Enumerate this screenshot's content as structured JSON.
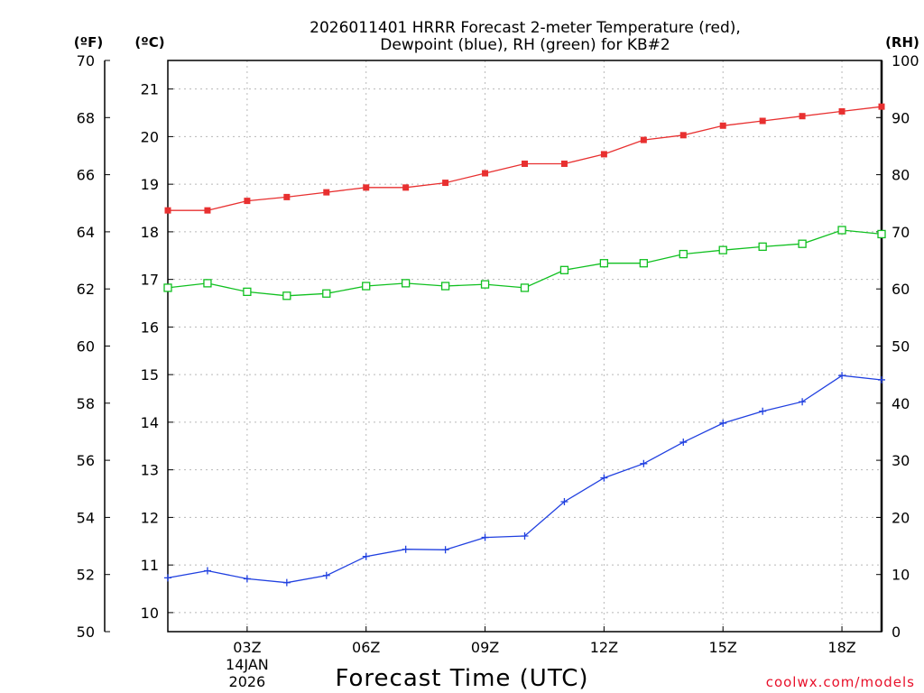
{
  "chart_data": {
    "type": "line",
    "title_line1": "2026011401 HRRR Forecast 2-meter Temperature (red),",
    "title_line2": "Dewpoint (blue), RH (green) for KB#2",
    "xlabel": "Forecast Time (UTC)",
    "credit": "coolwx.com/models",
    "axes": {
      "fahrenheit": {
        "unit": "(ºF)",
        "ticks": [
          "50",
          "52",
          "54",
          "56",
          "58",
          "60",
          "62",
          "64",
          "66",
          "68",
          "70"
        ],
        "range": [
          50,
          70
        ]
      },
      "celsius": {
        "unit": "(ºC)",
        "ticks": [
          "10",
          "11",
          "12",
          "13",
          "14",
          "15",
          "16",
          "17",
          "18",
          "19",
          "20",
          "21"
        ],
        "range": [
          9.6,
          21.6
        ]
      },
      "rh": {
        "unit": "(RH)",
        "ticks": [
          "0",
          "10",
          "20",
          "30",
          "40",
          "50",
          "60",
          "70",
          "80",
          "90",
          "100"
        ],
        "range": [
          0,
          100
        ]
      }
    },
    "x": [
      1,
      2,
      3,
      4,
      5,
      6,
      7,
      8,
      9,
      10,
      11,
      12,
      13,
      14,
      15,
      16,
      17,
      18,
      19
    ],
    "xlim": [
      1,
      19
    ],
    "x_ticks": [
      {
        "x": 3,
        "label": "03Z",
        "sub1": "14JAN",
        "sub2": "2026"
      },
      {
        "x": 6,
        "label": "06Z",
        "sub1": "",
        "sub2": ""
      },
      {
        "x": 9,
        "label": "09Z",
        "sub1": "",
        "sub2": ""
      },
      {
        "x": 12,
        "label": "12Z",
        "sub1": "",
        "sub2": ""
      },
      {
        "x": 15,
        "label": "15Z",
        "sub1": "",
        "sub2": ""
      },
      {
        "x": 18,
        "label": "18Z",
        "sub1": "",
        "sub2": ""
      }
    ],
    "series": [
      {
        "name": "Temperature",
        "axis": "celsius",
        "color": "#e83030",
        "marker": "filled-square",
        "values": [
          18.45,
          18.45,
          18.65,
          18.73,
          18.83,
          18.93,
          18.93,
          19.03,
          19.23,
          19.43,
          19.43,
          19.63,
          19.93,
          20.03,
          20.23,
          20.33,
          20.43,
          20.53,
          20.63
        ]
      },
      {
        "name": "Dewpoint",
        "axis": "celsius",
        "color": "#2040e0",
        "marker": "plus",
        "values": [
          10.73,
          10.88,
          10.71,
          10.63,
          10.78,
          11.18,
          11.33,
          11.32,
          11.58,
          11.61,
          12.33,
          12.83,
          13.13,
          13.58,
          13.98,
          14.23,
          14.43,
          14.98,
          14.89
        ]
      },
      {
        "name": "RH",
        "axis": "rh",
        "color": "#10c020",
        "marker": "open-square",
        "values": [
          60.2,
          61.0,
          59.5,
          58.8,
          59.2,
          60.5,
          61.0,
          60.5,
          60.8,
          60.2,
          63.3,
          64.5,
          64.5,
          66.1,
          66.8,
          67.4,
          67.9,
          70.3,
          69.6
        ]
      }
    ]
  }
}
